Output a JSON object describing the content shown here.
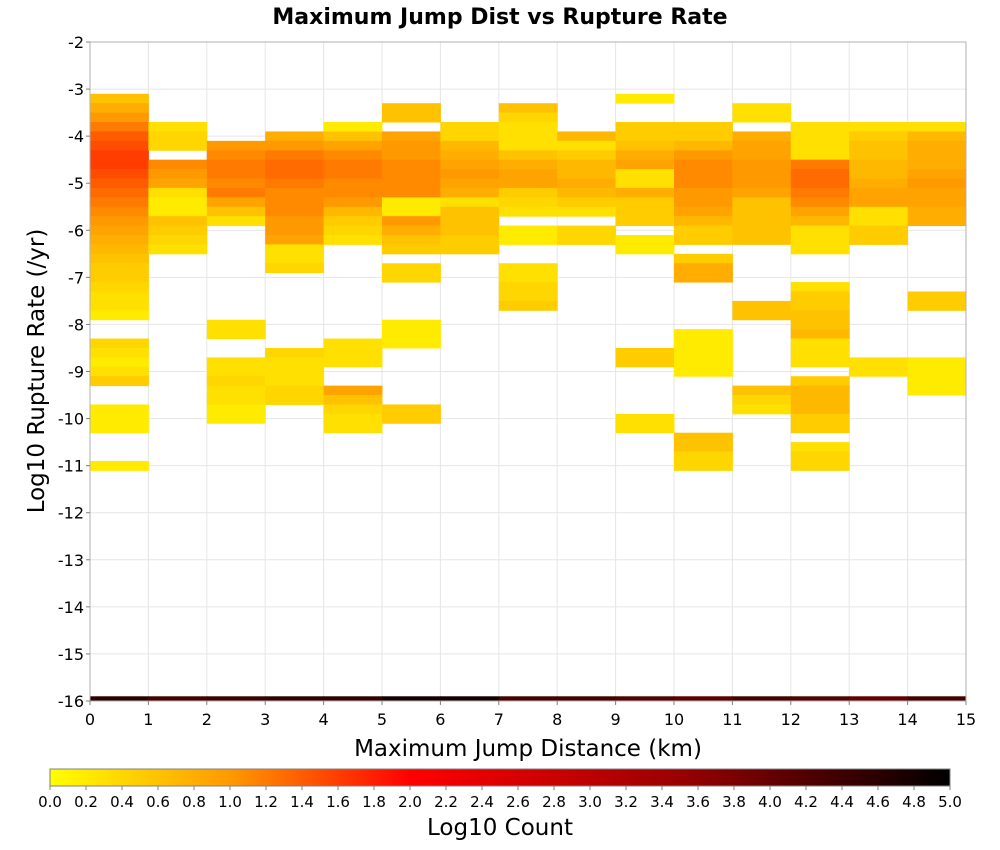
{
  "chart_data": {
    "type": "heatmap",
    "title": "Maximum Jump Dist vs Rupture Rate",
    "xlabel": "Maximum Jump Distance (km)",
    "ylabel": "Log10 Rupture Rate (/yr)",
    "xlim": [
      0,
      15
    ],
    "ylim": [
      -16,
      -2
    ],
    "x_ticks": [
      "0",
      "1",
      "2",
      "3",
      "4",
      "5",
      "6",
      "7",
      "8",
      "9",
      "10",
      "11",
      "12",
      "13",
      "14",
      "15"
    ],
    "y_ticks": [
      "-2",
      "-3",
      "-4",
      "-5",
      "-6",
      "-7",
      "-8",
      "-9",
      "-10",
      "-11",
      "-12",
      "-13",
      "-14",
      "-15",
      "-16"
    ],
    "grid": true,
    "x_bin_width": 1,
    "y_bin_height": 0.2,
    "colorbar": {
      "label": "Log10 Count",
      "range": [
        0,
        5
      ],
      "ticks": [
        "0.0",
        "0.2",
        "0.4",
        "0.6",
        "0.8",
        "1.0",
        "1.2",
        "1.4",
        "1.6",
        "1.8",
        "2.0",
        "2.2",
        "2.4",
        "2.6",
        "2.8",
        "3.0",
        "3.2",
        "3.4",
        "3.6",
        "3.8",
        "4.0",
        "4.2",
        "4.4",
        "4.6",
        "4.8",
        "5.0"
      ],
      "colors": [
        "#ffff00",
        "#ff9900",
        "#ff0000",
        "#990000",
        "#000000"
      ]
    },
    "cells": [
      {
        "x": 0,
        "y": [
          -3.2,
          -3.4,
          -3.6,
          -3.8,
          -4.0,
          -4.2,
          -4.4,
          -4.6,
          -4.8,
          -5.0,
          -5.2,
          -5.4,
          -5.6,
          -5.8,
          -6.0,
          -6.2,
          -6.4,
          -6.6,
          -6.8,
          -7.0,
          -7.2,
          -7.4,
          -7.6,
          -7.8,
          -8.4,
          -8.6,
          -8.8,
          -9.0,
          -9.2,
          -9.8,
          -10.0,
          -10.2,
          -11.0
        ],
        "v": [
          0.6,
          0.8,
          1.0,
          1.2,
          1.4,
          1.5,
          1.6,
          1.6,
          1.5,
          1.4,
          1.3,
          1.2,
          1.1,
          1.0,
          0.9,
          0.8,
          0.7,
          0.6,
          0.5,
          0.5,
          0.4,
          0.3,
          0.3,
          0.2,
          0.4,
          0.3,
          0.2,
          0.3,
          0.5,
          0.2,
          0.2,
          0.2,
          0.2
        ]
      },
      {
        "x": 1,
        "y": [
          -3.8,
          -4.0,
          -4.2,
          -4.6,
          -4.8,
          -5.0,
          -5.2,
          -5.4,
          -5.6,
          -5.8,
          -6.0,
          -6.2,
          -6.4
        ],
        "v": [
          0.3,
          0.4,
          0.4,
          1.1,
          1.0,
          0.9,
          0.3,
          0.2,
          0.2,
          0.6,
          0.5,
          0.4,
          0.3
        ]
      },
      {
        "x": 2,
        "y": [
          -4.2,
          -4.4,
          -4.6,
          -4.8,
          -5.0,
          -5.2,
          -5.4,
          -5.6,
          -5.8,
          -8.0,
          -8.2,
          -8.8,
          -9.0,
          -9.2,
          -9.4,
          -9.6,
          -9.8,
          -10.0
        ],
        "v": [
          1.0,
          1.1,
          1.2,
          1.2,
          1.1,
          1.2,
          0.9,
          0.6,
          0.3,
          0.3,
          0.3,
          0.3,
          0.3,
          0.4,
          0.3,
          0.3,
          0.2,
          0.2
        ]
      },
      {
        "x": 3,
        "y": [
          -4.0,
          -4.2,
          -4.4,
          -4.6,
          -4.8,
          -5.0,
          -5.2,
          -5.4,
          -5.6,
          -5.8,
          -6.0,
          -6.2,
          -6.4,
          -6.6,
          -6.8,
          -8.6,
          -8.8,
          -9.0,
          -9.2,
          -9.4,
          -9.6
        ],
        "v": [
          0.8,
          1.0,
          1.2,
          1.3,
          1.3,
          1.2,
          1.1,
          1.1,
          1.1,
          1.0,
          1.0,
          0.9,
          0.3,
          0.3,
          0.4,
          0.4,
          0.3,
          0.3,
          0.3,
          0.4,
          0.4
        ]
      },
      {
        "x": 4,
        "y": [
          -3.8,
          -4.0,
          -4.2,
          -4.4,
          -4.6,
          -4.8,
          -5.0,
          -5.2,
          -5.4,
          -5.6,
          -5.8,
          -6.0,
          -6.2,
          -8.4,
          -8.6,
          -8.8,
          -9.4,
          -9.6,
          -9.8,
          -10.0,
          -10.2
        ],
        "v": [
          0.2,
          0.6,
          0.9,
          1.1,
          1.2,
          1.2,
          1.1,
          1.1,
          1.0,
          0.7,
          0.5,
          0.4,
          0.3,
          0.3,
          0.3,
          0.3,
          0.9,
          0.6,
          0.4,
          0.3,
          0.3
        ]
      },
      {
        "x": 5,
        "y": [
          -3.4,
          -3.6,
          -4.0,
          -4.2,
          -4.4,
          -4.6,
          -4.8,
          -5.0,
          -5.2,
          -5.4,
          -5.6,
          -5.8,
          -6.0,
          -6.2,
          -6.4,
          -6.8,
          -7.0,
          -8.0,
          -8.2,
          -8.4,
          -9.8,
          -10.0
        ],
        "v": [
          0.6,
          0.6,
          0.9,
          1.0,
          1.0,
          1.1,
          1.1,
          1.1,
          1.1,
          0.2,
          0.2,
          1.0,
          0.8,
          0.6,
          0.5,
          0.4,
          0.4,
          0.2,
          0.2,
          0.2,
          0.5,
          0.5
        ]
      },
      {
        "x": 6,
        "y": [
          -3.8,
          -4.0,
          -4.2,
          -4.4,
          -4.6,
          -4.8,
          -5.0,
          -5.2,
          -5.4,
          -5.6,
          -5.8,
          -6.0,
          -6.2,
          -6.4
        ],
        "v": [
          0.4,
          0.4,
          0.7,
          0.8,
          0.9,
          1.0,
          0.9,
          0.8,
          0.3,
          0.6,
          0.6,
          0.6,
          0.5,
          0.5
        ]
      },
      {
        "x": 7,
        "y": [
          -3.4,
          -3.6,
          -3.8,
          -4.0,
          -4.2,
          -4.4,
          -4.6,
          -4.8,
          -5.0,
          -5.2,
          -5.4,
          -5.6,
          -6.0,
          -6.2,
          -6.8,
          -7.0,
          -7.2,
          -7.4,
          -7.6
        ],
        "v": [
          0.6,
          0.4,
          0.3,
          0.3,
          0.3,
          0.6,
          0.8,
          0.9,
          0.9,
          0.5,
          0.4,
          0.3,
          0.2,
          0.2,
          0.3,
          0.3,
          0.4,
          0.4,
          0.5
        ]
      },
      {
        "x": 8,
        "y": [
          -4.0,
          -4.2,
          -4.4,
          -4.6,
          -4.8,
          -5.0,
          -5.2,
          -5.4,
          -5.6,
          -6.0,
          -6.2
        ],
        "v": [
          0.7,
          0.3,
          0.5,
          0.7,
          0.7,
          0.8,
          0.7,
          0.5,
          0.3,
          0.4,
          0.4
        ]
      },
      {
        "x": 9,
        "y": [
          -3.2,
          -3.8,
          -4.0,
          -4.2,
          -4.4,
          -4.6,
          -4.8,
          -5.0,
          -5.2,
          -5.4,
          -5.6,
          -5.8,
          -6.2,
          -6.4,
          -8.6,
          -8.8,
          -10.0,
          -10.2
        ],
        "v": [
          0.2,
          0.5,
          0.5,
          0.6,
          0.8,
          0.9,
          0.3,
          0.3,
          0.8,
          0.5,
          0.5,
          0.5,
          0.2,
          0.2,
          0.5,
          0.5,
          0.3,
          0.3
        ]
      },
      {
        "x": 10,
        "y": [
          -3.8,
          -4.0,
          -4.2,
          -4.4,
          -4.6,
          -4.8,
          -5.0,
          -5.2,
          -5.4,
          -5.6,
          -5.8,
          -6.0,
          -6.2,
          -6.6,
          -6.8,
          -7.0,
          -8.2,
          -8.4,
          -8.6,
          -8.8,
          -9.0,
          -10.4,
          -10.6,
          -10.8,
          -11.0
        ],
        "v": [
          0.5,
          0.5,
          0.7,
          1.0,
          1.1,
          1.1,
          1.1,
          1.0,
          1.0,
          0.9,
          0.7,
          0.5,
          0.5,
          0.5,
          0.8,
          0.8,
          0.2,
          0.2,
          0.2,
          0.2,
          0.2,
          0.6,
          0.6,
          0.4,
          0.4
        ]
      },
      {
        "x": 11,
        "y": [
          -3.4,
          -3.6,
          -4.0,
          -4.2,
          -4.4,
          -4.6,
          -4.8,
          -5.0,
          -5.2,
          -5.4,
          -5.6,
          -5.8,
          -6.0,
          -6.2,
          -7.6,
          -7.8,
          -9.4,
          -9.6,
          -9.8
        ],
        "v": [
          0.3,
          0.3,
          0.8,
          0.9,
          0.9,
          1.0,
          1.0,
          1.0,
          0.9,
          0.6,
          0.6,
          0.6,
          0.6,
          0.6,
          0.6,
          0.6,
          0.6,
          0.4,
          0.3
        ]
      },
      {
        "x": 12,
        "y": [
          -3.8,
          -4.0,
          -4.2,
          -4.4,
          -4.6,
          -4.8,
          -5.0,
          -5.2,
          -5.4,
          -5.6,
          -5.8,
          -6.0,
          -6.2,
          -6.4,
          -7.2,
          -7.4,
          -7.6,
          -7.8,
          -8.0,
          -8.2,
          -8.4,
          -8.6,
          -8.8,
          -9.2,
          -9.4,
          -9.6,
          -9.8,
          -10.0,
          -10.2,
          -10.6,
          -10.8,
          -11.0
        ],
        "v": [
          0.3,
          0.3,
          0.3,
          0.3,
          1.2,
          1.3,
          1.3,
          1.2,
          1.1,
          0.9,
          0.7,
          0.3,
          0.3,
          0.3,
          0.3,
          0.5,
          0.5,
          0.6,
          0.6,
          0.7,
          0.3,
          0.3,
          0.3,
          0.5,
          0.7,
          0.7,
          0.7,
          0.5,
          0.5,
          0.3,
          0.4,
          0.4
        ]
      },
      {
        "x": 13,
        "y": [
          -3.8,
          -4.0,
          -4.2,
          -4.4,
          -4.6,
          -4.8,
          -5.0,
          -5.2,
          -5.4,
          -5.6,
          -5.8,
          -6.0,
          -6.2,
          -8.8,
          -9.0
        ],
        "v": [
          0.3,
          0.5,
          0.6,
          0.6,
          0.7,
          0.7,
          0.8,
          0.9,
          0.9,
          0.3,
          0.3,
          0.5,
          0.5,
          0.3,
          0.3
        ]
      },
      {
        "x": 14,
        "y": [
          -3.8,
          -4.0,
          -4.2,
          -4.4,
          -4.6,
          -4.8,
          -5.0,
          -5.2,
          -5.4,
          -5.6,
          -5.8,
          -7.4,
          -7.6,
          -8.8,
          -9.0,
          -9.2,
          -9.4
        ],
        "v": [
          0.3,
          0.7,
          0.8,
          0.8,
          0.8,
          0.9,
          1.0,
          0.9,
          0.9,
          0.8,
          0.8,
          0.5,
          0.5,
          0.2,
          0.2,
          0.2,
          0.2
        ]
      }
    ],
    "bottom_row": {
      "y": -16.0,
      "v": [
        4.6,
        4.3,
        4.4,
        4.5,
        4.5,
        4.8,
        4.8,
        4.3,
        4.3,
        4.2,
        4.1,
        4.3,
        4.2,
        4.0,
        4.3
      ]
    }
  }
}
